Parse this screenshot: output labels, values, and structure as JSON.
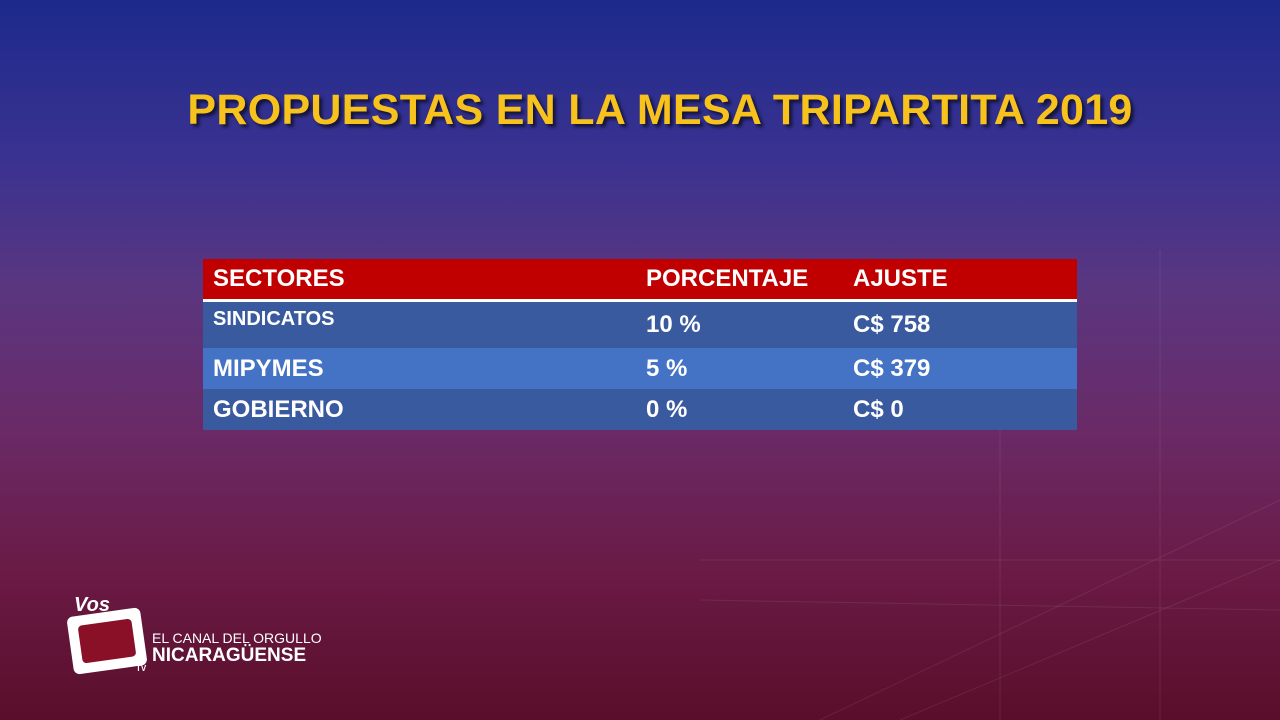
{
  "header": {
    "title": "PROPUESTAS EN LA MESA TRIPARTITA 2019"
  },
  "table": {
    "columns": [
      "SECTORES",
      "PORCENTAJE",
      "AJUSTE"
    ],
    "rows": [
      [
        "SINDICATOS",
        "10 %",
        "C$ 758"
      ],
      [
        "MIPYMES",
        "5 %",
        "C$ 379"
      ],
      [
        "GOBIERNO",
        "0 %",
        "C$ 0"
      ]
    ]
  },
  "logo": {
    "brand": "Vos",
    "sub": "TV",
    "tagline": "EL CANAL DEL ORGULLO",
    "country": "NICARAGÜENSE"
  }
}
